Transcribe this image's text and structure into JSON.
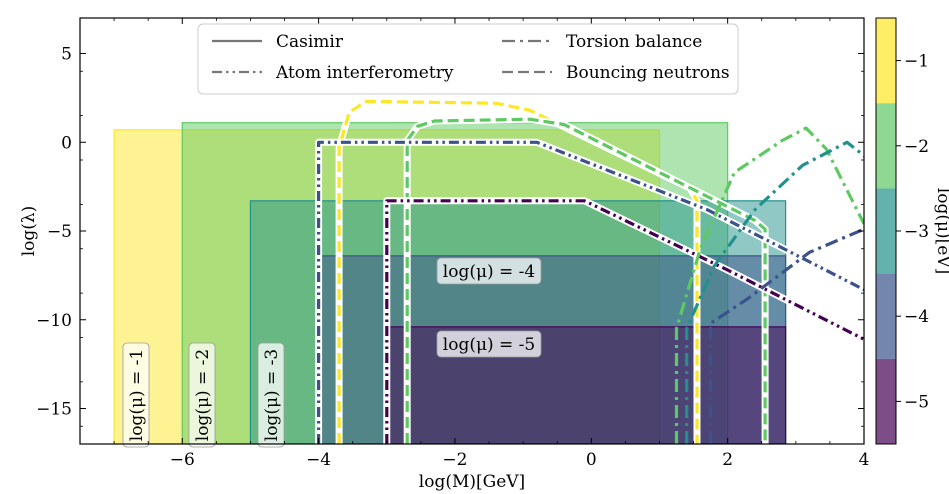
{
  "chart_data": {
    "type": "area",
    "xlabel": "log(M)[GeV]",
    "ylabel": "log(λ)",
    "xlim": [
      -7.5,
      4
    ],
    "ylim": [
      -17,
      7
    ],
    "x_ticks": [
      -6,
      -4,
      -2,
      0,
      2,
      4
    ],
    "y_ticks": [
      5,
      0,
      -5,
      -10,
      -15
    ],
    "grid": false,
    "legend": {
      "placement": "top-center",
      "entries": [
        {
          "label": "Casimir",
          "style": "solid"
        },
        {
          "label": "Torsion balance",
          "style": "dashdot"
        },
        {
          "label": "Atom interferometry",
          "style": "dashdotdot"
        },
        {
          "label": "Bouncing neutrons",
          "style": "dashed"
        }
      ]
    },
    "colorbar": {
      "label": "log(μ)[eV]",
      "range": [
        -5.5,
        -0.5
      ],
      "ticks": [
        -1,
        -2,
        -3,
        -4,
        -5
      ],
      "colors": [
        "#440154",
        "#3b528b",
        "#21918c",
        "#5ec962",
        "#fde725"
      ]
    },
    "regions": [
      {
        "log_mu": -1,
        "color": "#fde725",
        "x": [
          -7.0,
          1.0
        ],
        "y": [
          -17,
          0.7
        ],
        "label": "log(μ) = -1"
      },
      {
        "log_mu": -2,
        "color": "#5ec962",
        "x": [
          -6.0,
          2.0
        ],
        "y": [
          -17,
          1.1
        ],
        "label": "log(μ) = -2"
      },
      {
        "log_mu": -3,
        "color": "#21918c",
        "x": [
          -5.0,
          2.85
        ],
        "y": [
          -17,
          -3.3
        ],
        "label": "log(μ) = -3"
      },
      {
        "log_mu": -4,
        "color": "#3b528b",
        "x": [
          -4.0,
          2.85
        ],
        "y": [
          -17,
          -6.4
        ],
        "label": "log(μ) = -4"
      },
      {
        "log_mu": -5,
        "color": "#440154",
        "x": [
          -3.0,
          2.85
        ],
        "y": [
          -17,
          -10.4
        ],
        "label": "log(μ) = -5"
      }
    ],
    "curves": [
      {
        "experiment": "Bouncing neutrons",
        "log_mu": -1,
        "color": "#fde725",
        "style": "dashed",
        "points": [
          [
            -3.7,
            -17
          ],
          [
            -3.7,
            -0.3
          ],
          [
            -3.55,
            1.7
          ],
          [
            -3.3,
            2.3
          ],
          [
            -1.4,
            2.2
          ],
          [
            -0.9,
            1.8
          ],
          [
            1.45,
            -2.6
          ],
          [
            1.55,
            -3.3
          ],
          [
            1.55,
            -17
          ]
        ]
      },
      {
        "experiment": "Bouncing neutrons",
        "log_mu": -2,
        "color": "#5ec962",
        "style": "dashed",
        "points": [
          [
            -2.7,
            -17
          ],
          [
            -2.7,
            0.1
          ],
          [
            -2.55,
            0.9
          ],
          [
            -2.3,
            1.2
          ],
          [
            -0.9,
            1.3
          ],
          [
            -0.4,
            1.0
          ],
          [
            2.4,
            -4.4
          ],
          [
            2.55,
            -4.9
          ],
          [
            2.55,
            -17
          ]
        ]
      },
      {
        "experiment": "Atom interferometry",
        "log_mu": -4,
        "color": "#3b528b",
        "style": "dashdotdot",
        "points": [
          [
            -4.0,
            -17
          ],
          [
            -4.0,
            0.0
          ],
          [
            -0.8,
            0.0
          ],
          [
            1.7,
            -3.8
          ],
          [
            4.0,
            -8.3
          ]
        ]
      },
      {
        "experiment": "Atom interferometry",
        "log_mu": -5,
        "color": "#440154",
        "style": "dashdotdot",
        "points": [
          [
            -3.0,
            -17
          ],
          [
            -3.0,
            -3.3
          ],
          [
            -0.1,
            -3.3
          ],
          [
            2.0,
            -7.2
          ],
          [
            4.0,
            -11.1
          ]
        ]
      },
      {
        "experiment": "Torsion balance",
        "log_mu": -2,
        "color": "#5ec962",
        "style": "dashdot",
        "points": [
          [
            1.25,
            -17
          ],
          [
            1.25,
            -10.5
          ],
          [
            1.6,
            -6.0
          ],
          [
            2.1,
            -1.7
          ],
          [
            2.8,
            0.1
          ],
          [
            3.15,
            0.8
          ],
          [
            3.45,
            -0.4
          ],
          [
            4.0,
            -4.6
          ]
        ]
      },
      {
        "experiment": "Torsion balance",
        "log_mu": -3,
        "color": "#21918c",
        "style": "dashdot",
        "points": [
          [
            1.4,
            -17
          ],
          [
            1.4,
            -10.5
          ],
          [
            1.8,
            -7.0
          ],
          [
            2.4,
            -3.8
          ],
          [
            3.1,
            -1.3
          ],
          [
            3.75,
            0.0
          ],
          [
            3.95,
            -0.6
          ],
          [
            4.0,
            -0.8
          ]
        ]
      },
      {
        "experiment": "Torsion balance",
        "log_mu": -4,
        "color": "#3b528b",
        "style": "dashdot",
        "points": [
          [
            1.75,
            -17
          ],
          [
            1.75,
            -10.2
          ],
          [
            2.3,
            -8.8
          ],
          [
            3.2,
            -6.2
          ],
          [
            4.0,
            -4.9
          ]
        ]
      }
    ]
  }
}
